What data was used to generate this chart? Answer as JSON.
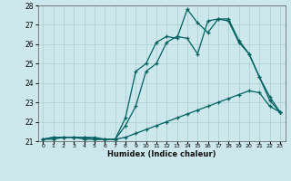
{
  "xlabel": "Humidex (Indice chaleur)",
  "xlim": [
    -0.5,
    23.5
  ],
  "ylim": [
    21,
    28
  ],
  "xticks": [
    0,
    1,
    2,
    3,
    4,
    5,
    6,
    7,
    8,
    9,
    10,
    11,
    12,
    13,
    14,
    15,
    16,
    17,
    18,
    19,
    20,
    21,
    22,
    23
  ],
  "yticks": [
    21,
    22,
    23,
    24,
    25,
    26,
    27,
    28
  ],
  "background_color": "#cce8ec",
  "grid_color": "#aacccc",
  "line_color": "#006060",
  "line1_y": [
    21.1,
    21.1,
    21.2,
    21.2,
    21.2,
    21.2,
    21.1,
    21.1,
    21.2,
    21.4,
    21.6,
    21.8,
    22.0,
    22.2,
    22.4,
    22.6,
    22.8,
    23.0,
    23.2,
    23.4,
    23.6,
    23.5,
    22.8,
    22.5
  ],
  "line2_y": [
    21.1,
    21.2,
    21.2,
    21.2,
    21.2,
    21.1,
    21.1,
    21.1,
    21.8,
    22.8,
    24.6,
    25.0,
    26.1,
    26.4,
    26.3,
    25.5,
    27.2,
    27.3,
    27.2,
    26.1,
    25.5,
    24.3,
    23.3,
    22.5
  ],
  "line3_y": [
    21.1,
    21.2,
    21.2,
    21.2,
    21.1,
    21.1,
    21.1,
    21.1,
    22.2,
    24.6,
    25.0,
    26.1,
    26.4,
    26.3,
    27.8,
    27.1,
    26.6,
    27.3,
    27.3,
    26.2,
    25.5,
    24.3,
    23.1,
    22.5
  ]
}
